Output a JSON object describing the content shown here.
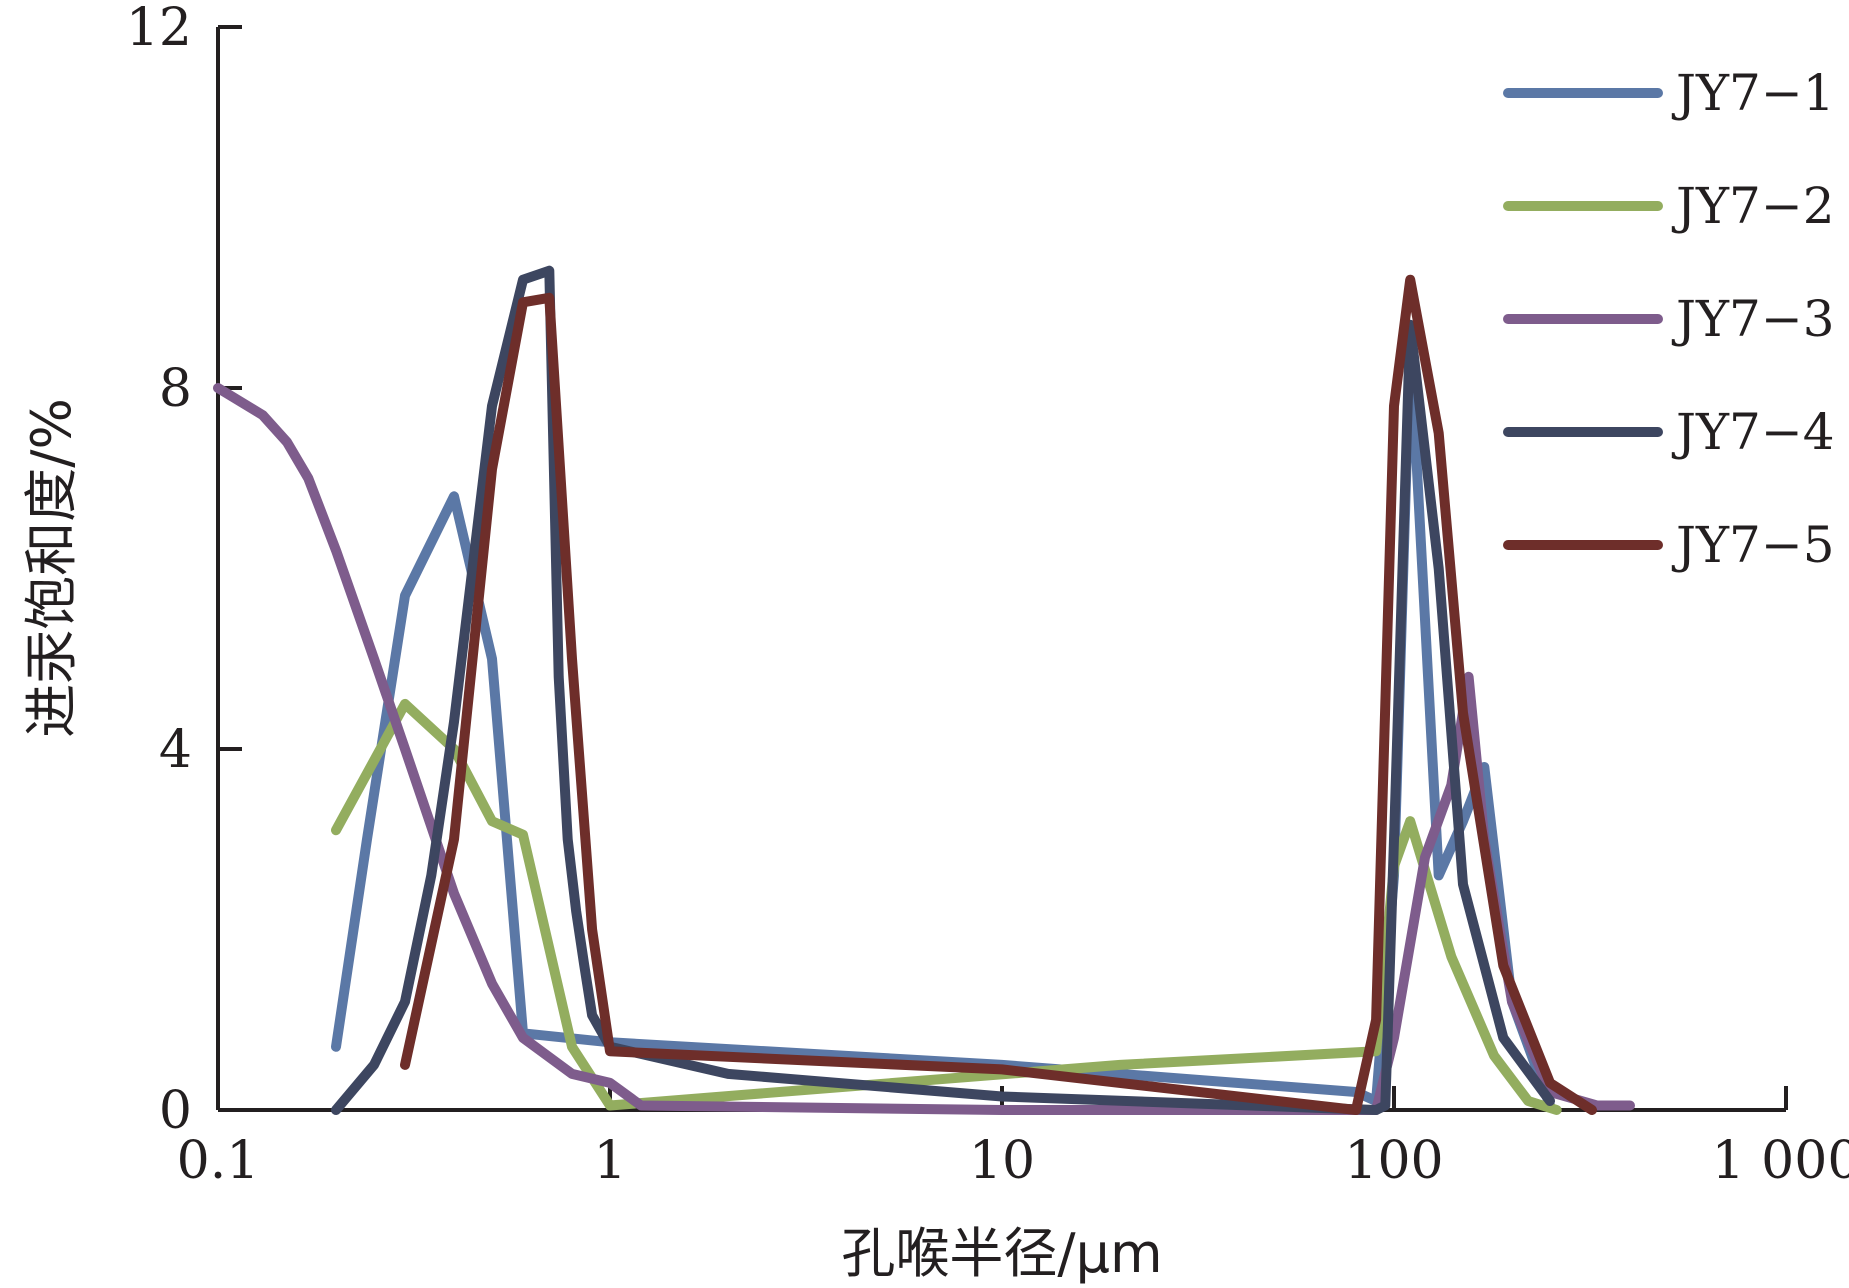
{
  "chart_data": {
    "type": "line",
    "xlabel": "孔喉半径/μm",
    "ylabel": "进汞饱和度/%",
    "xscale": "log",
    "xlim": [
      0.1,
      1000
    ],
    "ylim": [
      0,
      12
    ],
    "xticks": [
      {
        "value": 0.1,
        "label": "0.1"
      },
      {
        "value": 1,
        "label": "1"
      },
      {
        "value": 10,
        "label": "10"
      },
      {
        "value": 100,
        "label": "100"
      },
      {
        "value": 1000,
        "label": "1 000"
      }
    ],
    "yticks": [
      {
        "value": 0,
        "label": "0"
      },
      {
        "value": 4,
        "label": "4"
      },
      {
        "value": 8,
        "label": "8"
      },
      {
        "value": 12,
        "label": "12"
      }
    ],
    "legend_position": "top-right",
    "grid": false,
    "series": [
      {
        "name": "JY7−1",
        "color": "#5b78a6",
        "points": [
          [
            0.2,
            0.7
          ],
          [
            0.24,
            3.0
          ],
          [
            0.3,
            5.7
          ],
          [
            0.4,
            6.8
          ],
          [
            0.5,
            5.0
          ],
          [
            0.6,
            0.85
          ],
          [
            1.0,
            0.75
          ],
          [
            10,
            0.5
          ],
          [
            80,
            0.2
          ],
          [
            90,
            0.1
          ],
          [
            100,
            2.6
          ],
          [
            110,
            8.5
          ],
          [
            130,
            2.6
          ],
          [
            150,
            3.2
          ],
          [
            170,
            3.8
          ],
          [
            200,
            1.2
          ],
          [
            250,
            0.05
          ]
        ]
      },
      {
        "name": "JY7−2",
        "color": "#93ad5f",
        "points": [
          [
            0.2,
            3.1
          ],
          [
            0.3,
            4.5
          ],
          [
            0.4,
            4.0
          ],
          [
            0.5,
            3.2
          ],
          [
            0.6,
            3.05
          ],
          [
            0.8,
            0.7
          ],
          [
            1.0,
            0.05
          ],
          [
            20,
            0.5
          ],
          [
            90,
            0.65
          ],
          [
            100,
            2.7
          ],
          [
            110,
            3.2
          ],
          [
            140,
            1.7
          ],
          [
            180,
            0.6
          ],
          [
            220,
            0.1
          ],
          [
            260,
            0.0
          ]
        ]
      },
      {
        "name": "JY7−3",
        "color": "#7e5c8c",
        "points": [
          [
            0.1,
            8.0
          ],
          [
            0.13,
            7.7
          ],
          [
            0.15,
            7.4
          ],
          [
            0.17,
            7.0
          ],
          [
            0.2,
            6.2
          ],
          [
            0.25,
            5.0
          ],
          [
            0.3,
            4.0
          ],
          [
            0.4,
            2.4
          ],
          [
            0.5,
            1.4
          ],
          [
            0.6,
            0.8
          ],
          [
            0.8,
            0.4
          ],
          [
            1.0,
            0.3
          ],
          [
            1.2,
            0.05
          ],
          [
            10,
            0.0
          ],
          [
            90,
            0.0
          ],
          [
            100,
            0.8
          ],
          [
            120,
            2.8
          ],
          [
            140,
            3.6
          ],
          [
            155,
            4.8
          ],
          [
            170,
            3.0
          ],
          [
            200,
            1.2
          ],
          [
            250,
            0.2
          ],
          [
            330,
            0.05
          ],
          [
            400,
            0.05
          ]
        ]
      },
      {
        "name": "JY7−4",
        "color": "#3d4660",
        "points": [
          [
            0.2,
            0.0
          ],
          [
            0.25,
            0.5
          ],
          [
            0.3,
            1.2
          ],
          [
            0.35,
            2.6
          ],
          [
            0.4,
            4.3
          ],
          [
            0.5,
            7.8
          ],
          [
            0.6,
            9.2
          ],
          [
            0.7,
            9.3
          ],
          [
            0.74,
            4.8
          ],
          [
            0.78,
            3.0
          ],
          [
            0.82,
            2.2
          ],
          [
            0.86,
            1.6
          ],
          [
            0.9,
            1.05
          ],
          [
            1.0,
            0.7
          ],
          [
            2,
            0.4
          ],
          [
            10,
            0.15
          ],
          [
            90,
            0.0
          ],
          [
            95,
            0.05
          ],
          [
            100,
            3.0
          ],
          [
            110,
            8.7
          ],
          [
            130,
            6.0
          ],
          [
            150,
            2.5
          ],
          [
            190,
            0.8
          ],
          [
            250,
            0.1
          ]
        ]
      },
      {
        "name": "JY7−5",
        "color": "#6e2e2a",
        "points": [
          [
            0.3,
            0.5
          ],
          [
            0.4,
            3.0
          ],
          [
            0.5,
            7.1
          ],
          [
            0.6,
            8.95
          ],
          [
            0.7,
            9.0
          ],
          [
            0.8,
            5.0
          ],
          [
            0.9,
            2.0
          ],
          [
            1.0,
            0.65
          ],
          [
            10,
            0.45
          ],
          [
            80,
            0.0
          ],
          [
            90,
            1.0
          ],
          [
            100,
            7.8
          ],
          [
            110,
            9.2
          ],
          [
            130,
            7.5
          ],
          [
            150,
            4.4
          ],
          [
            190,
            1.6
          ],
          [
            250,
            0.3
          ],
          [
            320,
            0.0
          ]
        ]
      }
    ]
  }
}
